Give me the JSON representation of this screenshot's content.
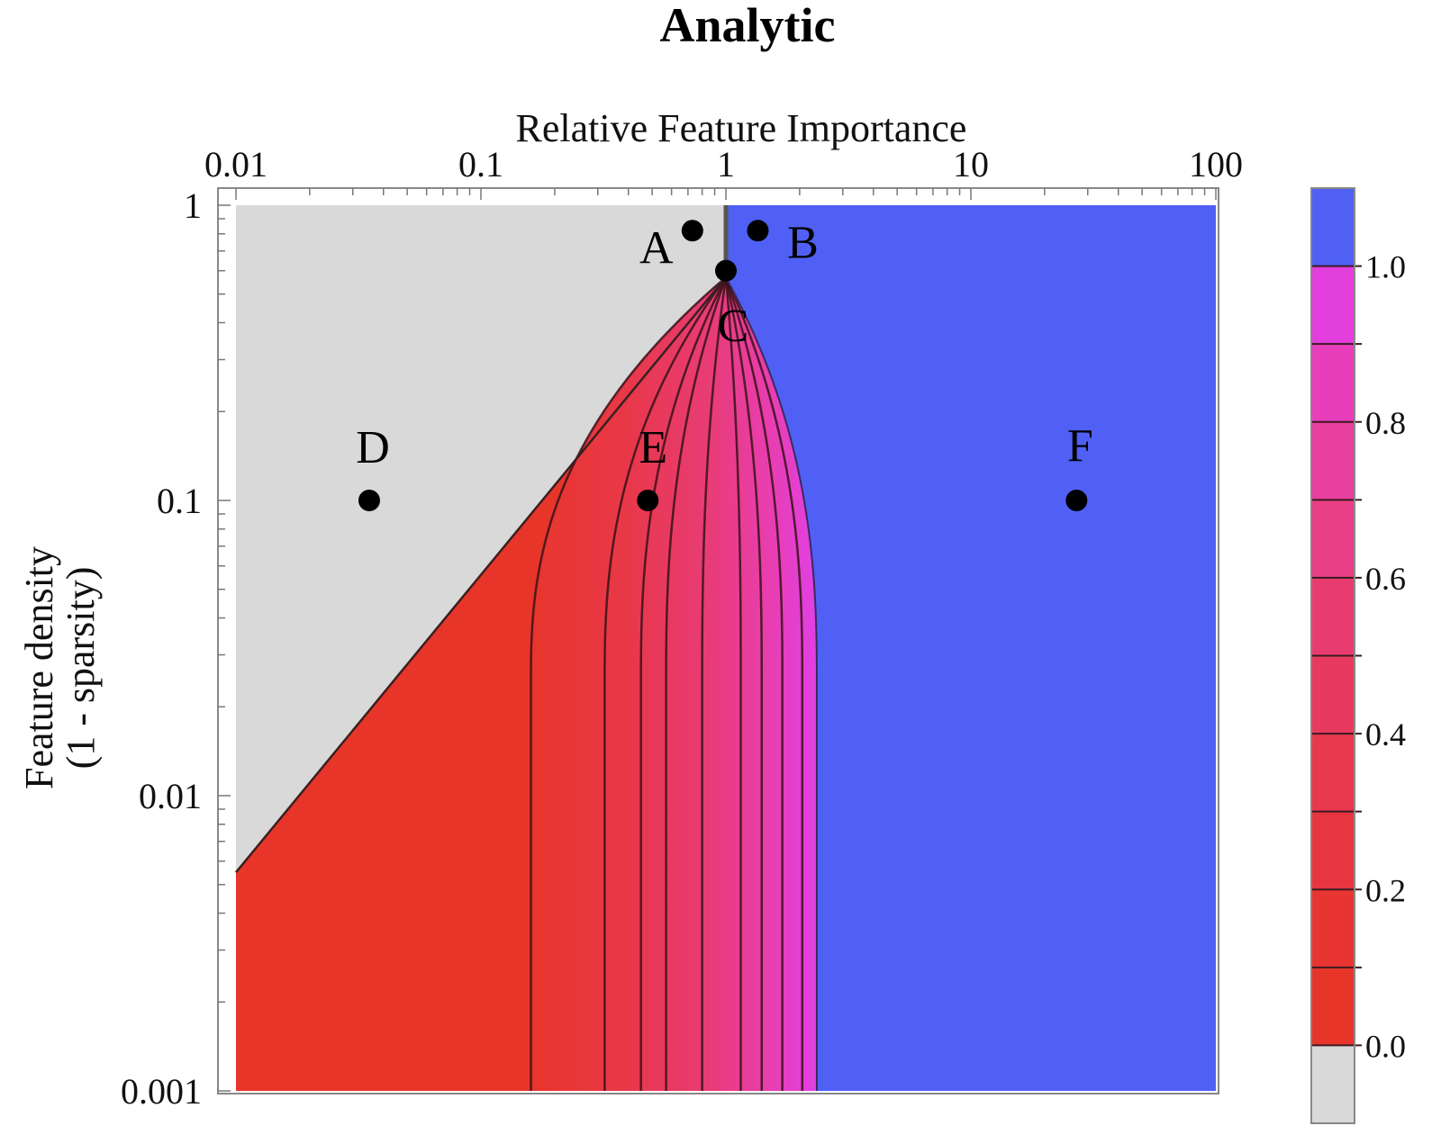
{
  "chart_data": {
    "type": "heatmap",
    "title": "Analytic",
    "xlabel": "Relative Feature Importance",
    "ylabel_lines": [
      "Feature density",
      "(1 - sparsity)"
    ],
    "x_scale": "log",
    "y_scale": "log",
    "xlim": [
      0.01,
      100
    ],
    "ylim": [
      0.001,
      1
    ],
    "x_ticks": [
      {
        "value": 0.01,
        "label": "0.01"
      },
      {
        "value": 0.1,
        "label": "0.1"
      },
      {
        "value": 1,
        "label": "1"
      },
      {
        "value": 10,
        "label": "10"
      },
      {
        "value": 100,
        "label": "100"
      }
    ],
    "y_ticks": [
      {
        "value": 1,
        "label": "1"
      },
      {
        "value": 0.1,
        "label": "0.1"
      },
      {
        "value": 0.01,
        "label": "0.01"
      },
      {
        "value": 0.001,
        "label": "0.001"
      }
    ],
    "regions": [
      {
        "name": "grey",
        "color": "#d9d9d9"
      },
      {
        "name": "red",
        "color": "#e8352a"
      },
      {
        "name": "blue",
        "color": "#5060f5"
      }
    ],
    "boundary_grey_red": [
      {
        "x": 0.01,
        "y": 0.0055
      },
      {
        "x": 1,
        "y": 0.57
      }
    ],
    "contour_levels": [
      0.1,
      0.2,
      0.3,
      0.4,
      0.5,
      0.6,
      0.7,
      0.8,
      0.9
    ],
    "contour_base_x": [
      0.16,
      0.32,
      0.45,
      0.57,
      0.8,
      1.15,
      1.4,
      1.7,
      2.05
    ],
    "blue_boundary_base_x": 2.35,
    "apex": {
      "x": 1,
      "y": 0.57
    },
    "points": [
      {
        "label": "A",
        "x": 0.73,
        "y": 0.82
      },
      {
        "label": "B",
        "x": 1.35,
        "y": 0.82
      },
      {
        "label": "C",
        "x": 1.0,
        "y": 0.6
      },
      {
        "label": "D",
        "x": 0.035,
        "y": 0.1
      },
      {
        "label": "E",
        "x": 0.48,
        "y": 0.1
      },
      {
        "label": "F",
        "x": 27,
        "y": 0.1
      }
    ],
    "colorbar": {
      "ticks": [
        {
          "value": 0.0,
          "label": "0.0"
        },
        {
          "value": 0.2,
          "label": "0.2"
        },
        {
          "value": 0.4,
          "label": "0.4"
        },
        {
          "value": 0.6,
          "label": "0.6"
        },
        {
          "value": 0.8,
          "label": "0.8"
        },
        {
          "value": 1.0,
          "label": "1.0"
        }
      ],
      "bands": [
        {
          "color": "#d9d9d9"
        },
        {
          "color": "#e8352a"
        },
        {
          "color": "#e83532"
        },
        {
          "color": "#e83640"
        },
        {
          "color": "#e8384e"
        },
        {
          "color": "#e83a5e"
        },
        {
          "color": "#e83c70"
        },
        {
          "color": "#e83e86"
        },
        {
          "color": "#e83e9e"
        },
        {
          "color": "#e83ebc"
        },
        {
          "color": "#e23edc"
        },
        {
          "color": "#5060f5"
        }
      ]
    }
  }
}
